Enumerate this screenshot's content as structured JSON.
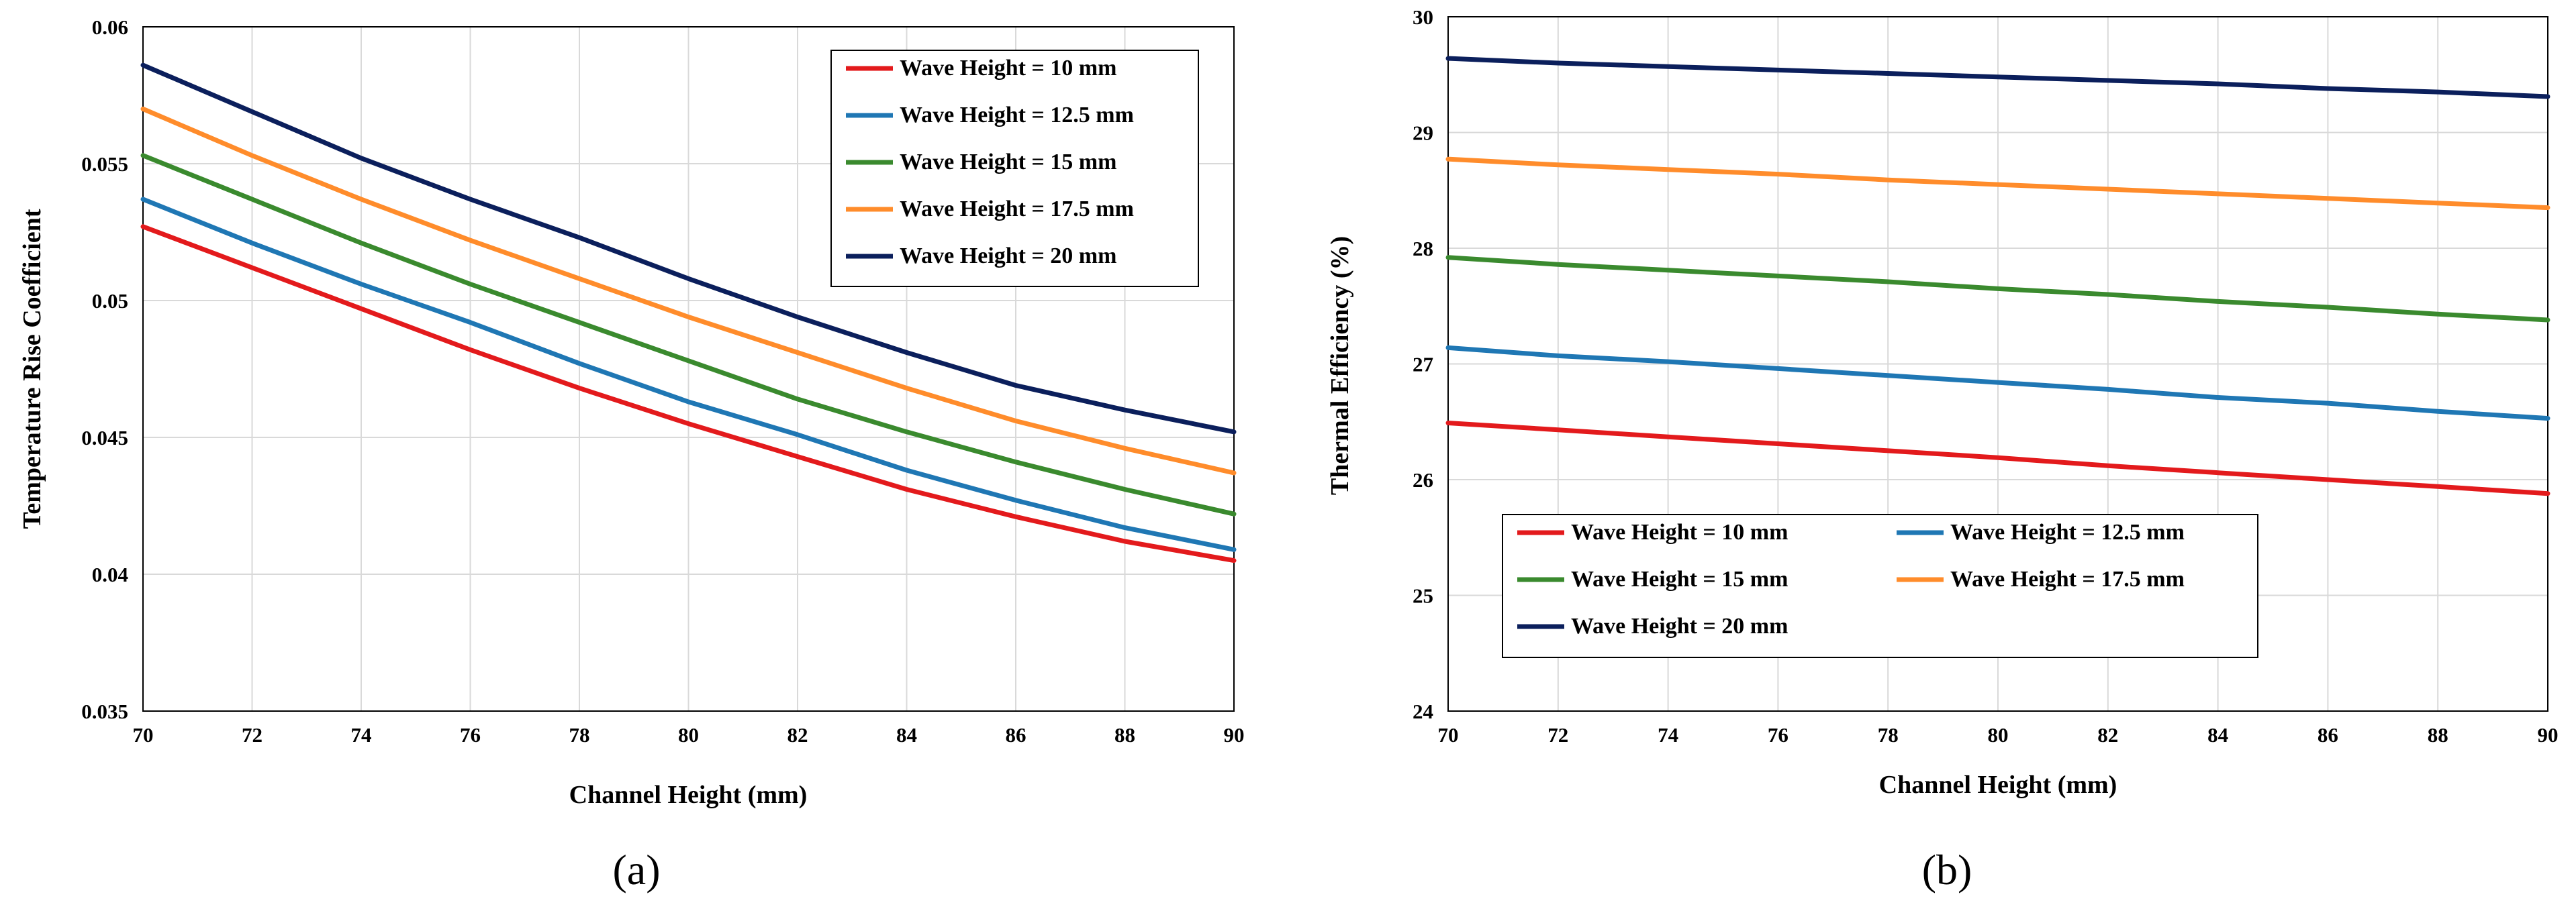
{
  "chart_data": [
    {
      "type": "line",
      "panel_label": "(a)",
      "xlabel": "Channel Height (mm)",
      "ylabel": "Temperature Rise Coefficient",
      "xlim": [
        70,
        90
      ],
      "ylim": [
        0.035,
        0.06
      ],
      "xticks": [
        70,
        72,
        74,
        76,
        78,
        80,
        82,
        84,
        86,
        88,
        90
      ],
      "yticks": [
        "0.035",
        "0.04",
        "0.045",
        "0.05",
        "0.055",
        "0.06"
      ],
      "grid": true,
      "legend_position": "top-right",
      "legend_columns": 1,
      "x": [
        70,
        72,
        74,
        76,
        78,
        80,
        82,
        84,
        86,
        88,
        90
      ],
      "series": [
        {
          "name": "Wave Height = 10 mm",
          "color": "#e31a1c",
          "values": [
            0.0527,
            0.0512,
            0.0497,
            0.0482,
            0.0468,
            0.0455,
            0.0443,
            0.0431,
            0.0421,
            0.0412,
            0.0405
          ]
        },
        {
          "name": "Wave Height = 12.5 mm",
          "color": "#1f77b4",
          "values": [
            0.0537,
            0.0521,
            0.0506,
            0.0492,
            0.0477,
            0.0463,
            0.0451,
            0.0438,
            0.0427,
            0.0417,
            0.0409
          ]
        },
        {
          "name": "Wave Height = 15 mm",
          "color": "#3a8a2e",
          "values": [
            0.0553,
            0.0537,
            0.0521,
            0.0506,
            0.0492,
            0.0478,
            0.0464,
            0.0452,
            0.0441,
            0.0431,
            0.0422
          ]
        },
        {
          "name": "Wave Height = 17.5 mm",
          "color": "#ff8c2b",
          "values": [
            0.057,
            0.0553,
            0.0537,
            0.0522,
            0.0508,
            0.0494,
            0.0481,
            0.0468,
            0.0456,
            0.0446,
            0.0437
          ]
        },
        {
          "name": "Wave Height = 20 mm",
          "color": "#0b1f5c",
          "values": [
            0.0586,
            0.0569,
            0.0552,
            0.0537,
            0.0523,
            0.0508,
            0.0494,
            0.0481,
            0.0469,
            0.046,
            0.0452
          ]
        }
      ]
    },
    {
      "type": "line",
      "panel_label": "(b)",
      "xlabel": "Channel Height (mm)",
      "ylabel": "Thermal Efficiency (%)",
      "xlim": [
        70,
        90
      ],
      "ylim": [
        24,
        30
      ],
      "xticks": [
        70,
        72,
        74,
        76,
        78,
        80,
        82,
        84,
        86,
        88,
        90
      ],
      "yticks": [
        "24",
        "25",
        "26",
        "27",
        "28",
        "29",
        "30"
      ],
      "grid": true,
      "legend_position": "bottom-left",
      "legend_columns": 2,
      "x": [
        70,
        72,
        74,
        76,
        78,
        80,
        82,
        84,
        86,
        88,
        90
      ],
      "series": [
        {
          "name": "Wave Height = 10 mm",
          "color": "#e31a1c",
          "values": [
            26.49,
            26.43,
            26.37,
            26.31,
            26.25,
            26.19,
            26.12,
            26.06,
            26.0,
            25.94,
            25.88
          ]
        },
        {
          "name": "Wave Height = 12.5 mm",
          "color": "#1f77b4",
          "values": [
            27.14,
            27.07,
            27.02,
            26.96,
            26.9,
            26.84,
            26.78,
            26.71,
            26.66,
            26.59,
            26.53
          ]
        },
        {
          "name": "Wave Height = 15 mm",
          "color": "#3a8a2e",
          "values": [
            27.92,
            27.86,
            27.81,
            27.76,
            27.71,
            27.65,
            27.6,
            27.54,
            27.49,
            27.43,
            27.38
          ]
        },
        {
          "name": "Wave Height = 17.5 mm",
          "color": "#ff8c2b",
          "values": [
            28.77,
            28.72,
            28.68,
            28.64,
            28.59,
            28.55,
            28.51,
            28.47,
            28.43,
            28.39,
            28.35
          ]
        },
        {
          "name": "Wave Height = 20 mm",
          "color": "#0b1f5c",
          "values": [
            29.64,
            29.6,
            29.57,
            29.54,
            29.51,
            29.48,
            29.45,
            29.42,
            29.38,
            29.35,
            29.31
          ]
        }
      ]
    }
  ]
}
